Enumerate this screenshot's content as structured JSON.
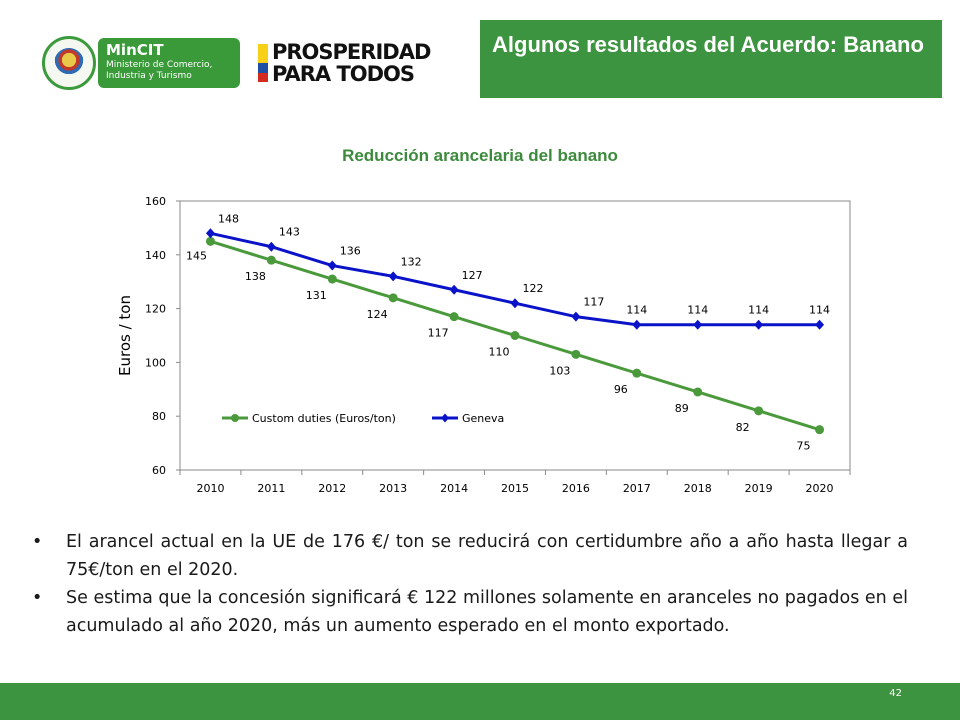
{
  "header": {
    "logo_mincit_title": "MinCIT",
    "logo_mincit_subtitle": "Ministerio de Comercio, Industria y Turismo",
    "logo_prosperidad_line1": "PROSPERIDAD",
    "logo_prosperidad_line2": "PARA TODOS",
    "title": "Algunos resultados del Acuerdo: Banano"
  },
  "colors": {
    "brand_green": "#3d9440",
    "series_green": "#4a9a3c",
    "series_blue": "#0a13c8"
  },
  "chart_data": {
    "type": "line",
    "title": "Reducción arancelaria del banano",
    "xlabel": "",
    "ylabel": "Euros / ton",
    "categories": [
      "2010",
      "2011",
      "2012",
      "2013",
      "2014",
      "2015",
      "2016",
      "2017",
      "2018",
      "2019",
      "2020"
    ],
    "ylim": [
      60,
      160
    ],
    "yticks": [
      60,
      80,
      100,
      120,
      140,
      160
    ],
    "grid": false,
    "legend": "bottom-left inside",
    "series": [
      {
        "name": "Custom duties (Euros/ton)",
        "color": "#4a9a3c",
        "marker": "circle",
        "values": [
          145,
          138,
          131,
          124,
          117,
          110,
          103,
          96,
          89,
          82,
          75
        ]
      },
      {
        "name": "Geneva",
        "color": "#0a13c8",
        "marker": "diamond",
        "values": [
          148,
          143,
          136,
          132,
          127,
          122,
          117,
          114,
          114,
          114,
          114
        ]
      }
    ]
  },
  "bullets": [
    "El arancel actual en la UE de 176 €/ ton se reducirá con certidumbre año a año hasta llegar a 75€/ton en el 2020.",
    "Se estima que la concesión  significará € 122 millones solamente en aranceles no pagados en el acumulado al año 2020, más un aumento esperado en el monto exportado."
  ],
  "bullet_symbol": "•",
  "footer": {
    "page_number": "42"
  }
}
